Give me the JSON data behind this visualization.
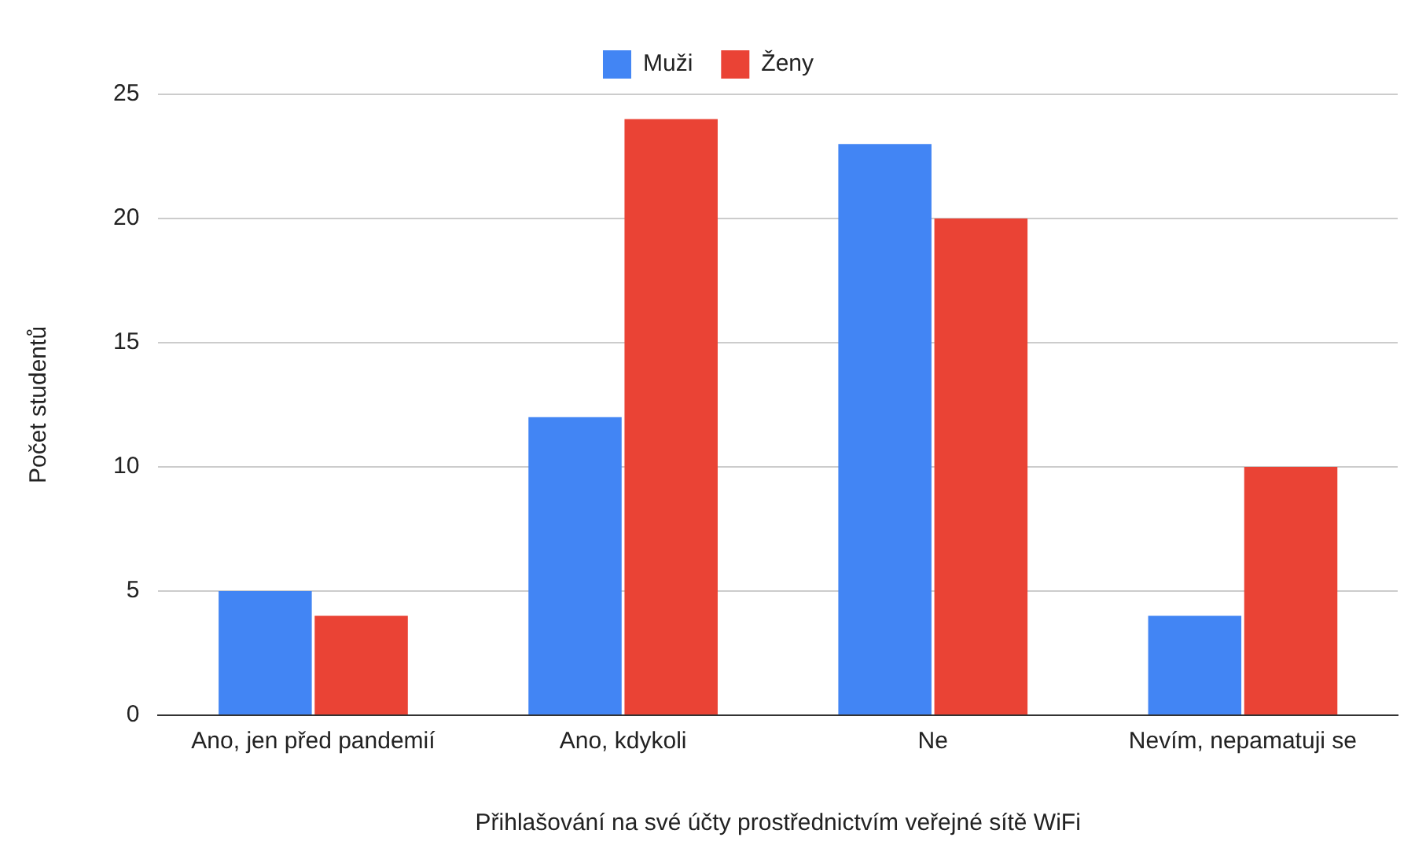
{
  "chart_data": {
    "type": "bar",
    "xlabel": "Přihlašování na své účty prostřednictvím veřejné sítě WiFi",
    "ylabel": "Počet studentů",
    "categories": [
      "Ano, jen před pandemií",
      "Ano, kdykoli",
      "Ne",
      "Nevím, nepamatuji se"
    ],
    "series": [
      {
        "name": "Muži",
        "color": "#4285f4",
        "values": [
          5,
          12,
          23,
          4
        ]
      },
      {
        "name": "Ženy",
        "color": "#ea4335",
        "values": [
          4,
          24,
          20,
          10
        ]
      }
    ],
    "ylim": [
      0,
      25
    ],
    "yticks": [
      0,
      5,
      10,
      15,
      20,
      25
    ],
    "grid": "y",
    "legend": "top"
  }
}
